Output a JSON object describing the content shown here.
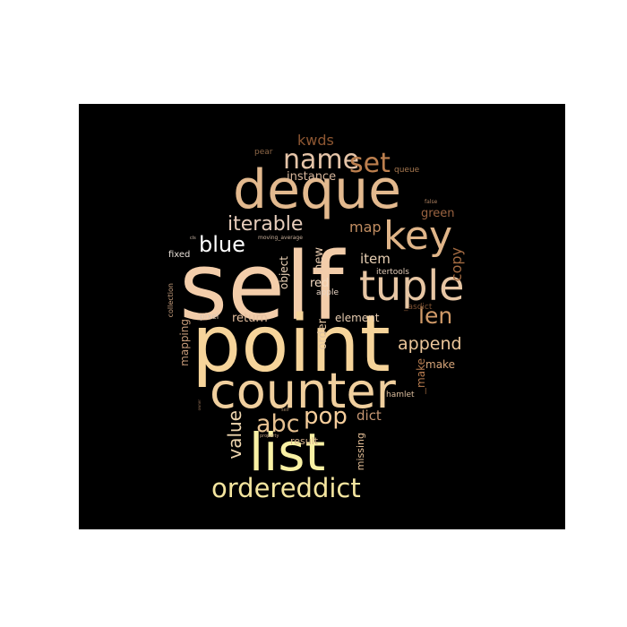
{
  "wordcloud": {
    "background": "#000000",
    "colormap": "copper",
    "words": {
      "self": "self",
      "point": "point",
      "deque": "deque",
      "counter": "counter",
      "list": "list",
      "tuple": "tuple",
      "key": "key",
      "ordereddict": "ordereddict",
      "name": "name",
      "set": "set",
      "blue": "blue",
      "iterable": "iterable",
      "pop": "pop",
      "abc": "abc",
      "len": "len",
      "value": "value",
      "append": "append",
      "kwds": "kwds",
      "map": "map",
      "item": "item",
      "copy": "copy",
      "dict": "dict",
      "new": "new",
      "instance": "instance",
      "green": "green",
      "return": "return",
      "red": "red",
      "order": "order",
      "object": "object",
      "element": "element",
      "make_v": "make",
      "make_h": "make",
      "mapping": "mapping",
      "result": "result",
      "missing": "missing",
      "queue": "queue",
      "pear": "pear",
      "fixed": "fixed",
      "apple": "apple",
      "pixel": "pixel",
      "itertools": "itertools",
      "hamlet": "hamlet",
      "collection": "collection",
      "asdict": "_asdict",
      "moving_average": "moving_average",
      "cls": "cls",
      "false": "false",
      "self_small": "self",
      "property": "property",
      "owner": "owner",
      "bar": "l"
    }
  }
}
